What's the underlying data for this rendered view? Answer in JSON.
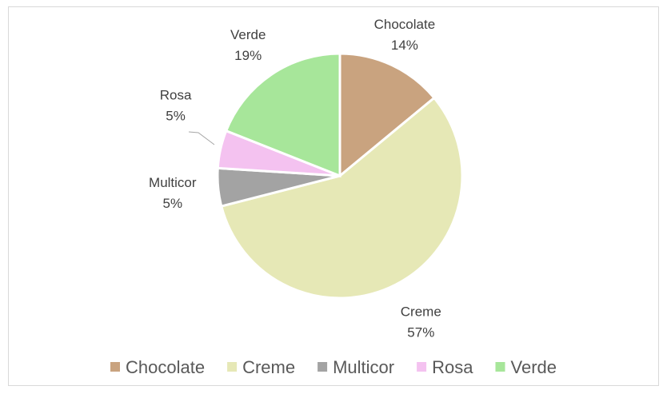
{
  "chart_data": {
    "type": "pie",
    "title": "",
    "categories": [
      "Chocolate",
      "Creme",
      "Multicor",
      "Rosa",
      "Verde"
    ],
    "values": [
      14,
      57,
      5,
      5,
      19
    ],
    "data_labels": [
      "14%",
      "57%",
      "5%",
      "5%",
      "19%"
    ],
    "colors": [
      "#c9a37f",
      "#e6e8b6",
      "#a3a3a3",
      "#f4c2f0",
      "#a7e69a"
    ],
    "legend": {
      "position": "bottom",
      "entries": [
        "Chocolate",
        "Creme",
        "Multicor",
        "Rosa",
        "Verde"
      ]
    },
    "start_angle_deg": 0,
    "direction": "clockwise"
  }
}
